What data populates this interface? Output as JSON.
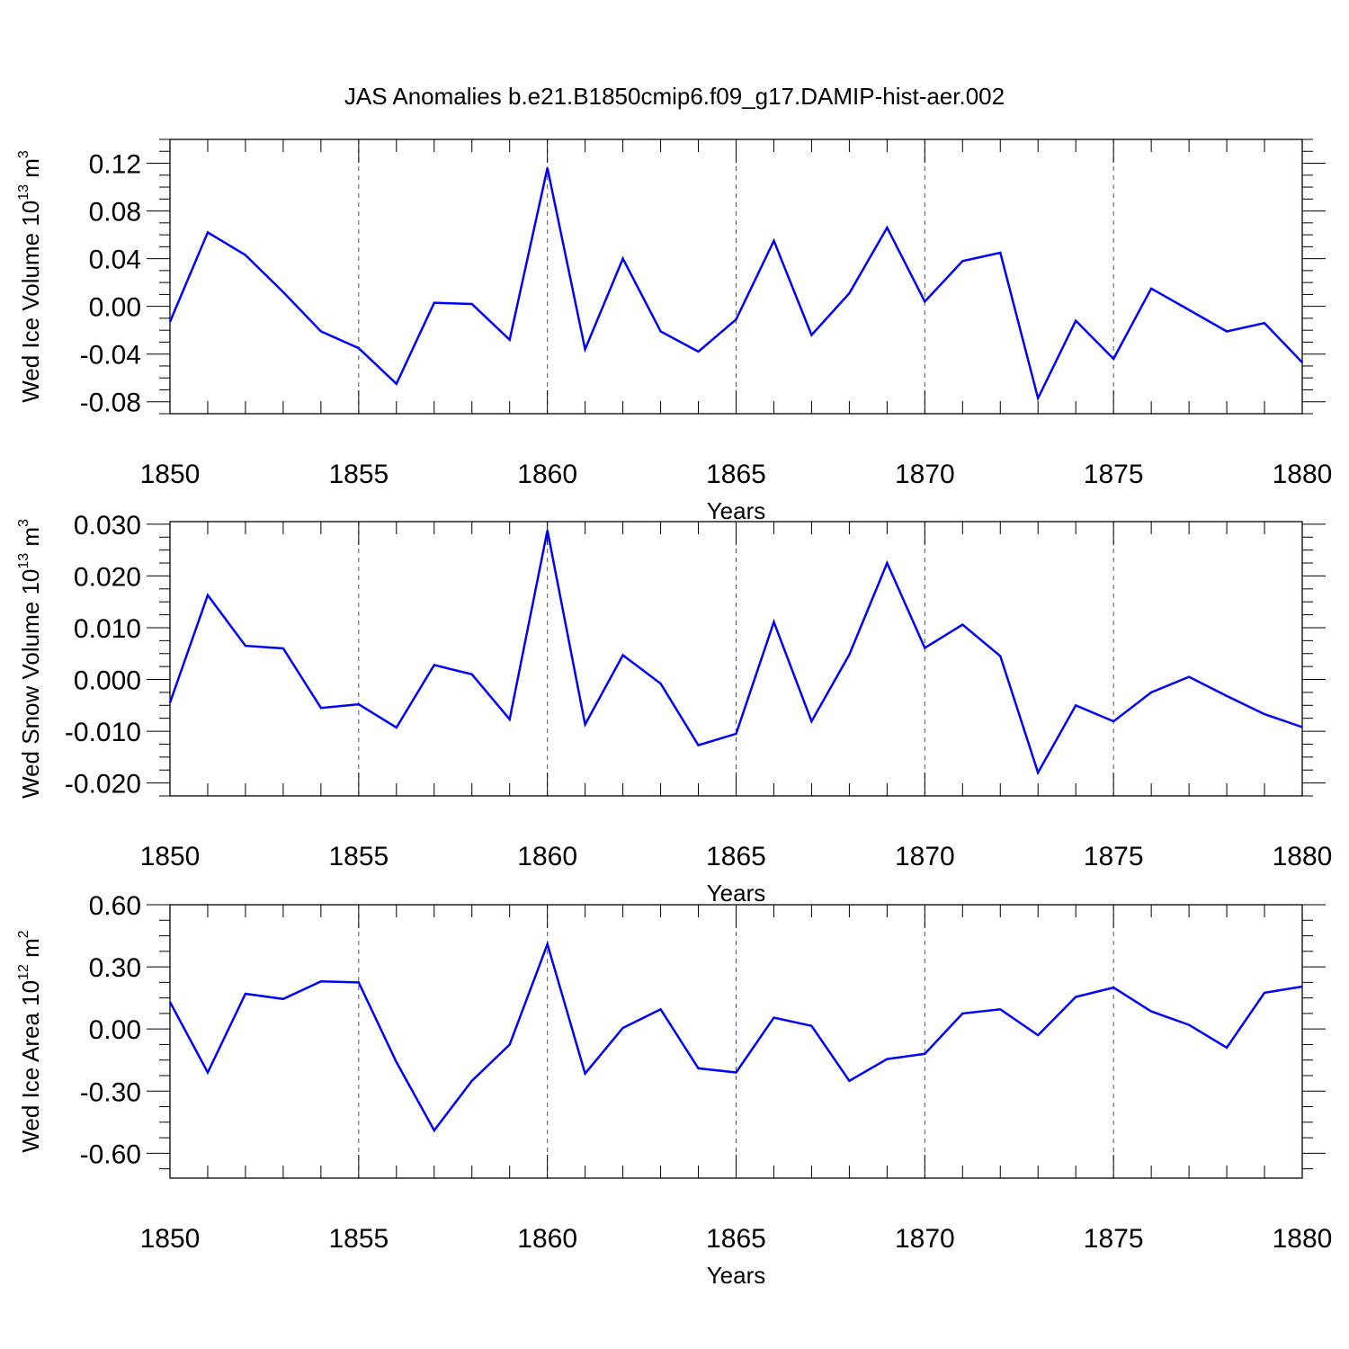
{
  "title": "JAS Anomalies b.e21.B1850cmip6.f09_g17.DAMIP-hist-aer.002",
  "chart_data": [
    {
      "type": "line",
      "ylabel": "Wed Ice Volume 10",
      "ylabel_exp": "13",
      "ylabel_unit": " m",
      "ylabel_unit_exp": "3",
      "xlabel": "Years",
      "x": [
        1850,
        1851,
        1852,
        1853,
        1854,
        1855,
        1856,
        1857,
        1858,
        1859,
        1860,
        1861,
        1862,
        1863,
        1864,
        1865,
        1866,
        1867,
        1868,
        1869,
        1870,
        1871,
        1872,
        1873,
        1874,
        1875,
        1876,
        1877,
        1878,
        1879,
        1880
      ],
      "values": [
        -0.013,
        0.062,
        0.043,
        0.012,
        -0.021,
        -0.035,
        -0.065,
        0.003,
        0.002,
        -0.028,
        0.116,
        -0.036,
        0.04,
        -0.021,
        -0.038,
        -0.011,
        0.055,
        -0.024,
        0.011,
        0.066,
        0.004,
        0.038,
        0.045,
        -0.077,
        -0.012,
        -0.044,
        0.015,
        -0.003,
        -0.021,
        -0.014,
        -0.047
      ],
      "xlim": [
        1850,
        1880
      ],
      "ylim": [
        -0.09,
        0.14
      ],
      "xticks": [
        "1850",
        "1855",
        "1860",
        "1865",
        "1870",
        "1875",
        "1880"
      ],
      "yticks": [
        "0.12",
        "0.08",
        "0.04",
        "0.00",
        "-0.04",
        "-0.08"
      ],
      "ytick_values": [
        0.12,
        0.08,
        0.04,
        0.0,
        -0.04,
        -0.08
      ],
      "grid": "vertical dashed at major x ticks",
      "color": "#0000ff"
    },
    {
      "type": "line",
      "ylabel": "Wed Snow Volume 10",
      "ylabel_exp": "13",
      "ylabel_unit": " m",
      "ylabel_unit_exp": "3",
      "xlabel": "Years",
      "x": [
        1850,
        1851,
        1852,
        1853,
        1854,
        1855,
        1856,
        1857,
        1858,
        1859,
        1860,
        1861,
        1862,
        1863,
        1864,
        1865,
        1866,
        1867,
        1868,
        1869,
        1870,
        1871,
        1872,
        1873,
        1874,
        1875,
        1876,
        1877,
        1878,
        1879,
        1880
      ],
      "values": [
        -0.0045,
        0.0163,
        0.0065,
        0.006,
        -0.0055,
        -0.0048,
        -0.0093,
        0.0028,
        0.001,
        -0.0077,
        0.0288,
        -0.0087,
        0.0047,
        -0.0008,
        -0.0127,
        -0.0105,
        0.0111,
        -0.0081,
        0.0048,
        0.0225,
        0.0061,
        0.0106,
        0.0045,
        -0.018,
        -0.005,
        -0.0081,
        -0.0025,
        0.0005,
        -0.0032,
        -0.0067,
        -0.0092
      ],
      "xlim": [
        1850,
        1880
      ],
      "ylim": [
        -0.0225,
        0.0305
      ],
      "xticks": [
        "1850",
        "1855",
        "1860",
        "1865",
        "1870",
        "1875",
        "1880"
      ],
      "yticks": [
        "0.030",
        "0.020",
        "0.010",
        "0.000",
        "-0.010",
        "-0.020"
      ],
      "ytick_values": [
        0.03,
        0.02,
        0.01,
        0.0,
        -0.01,
        -0.02
      ],
      "grid": "vertical dashed at major x ticks",
      "color": "#0000ff"
    },
    {
      "type": "line",
      "ylabel": "Wed Ice Area 10",
      "ylabel_exp": "12",
      "ylabel_unit": " m",
      "ylabel_unit_exp": "2",
      "xlabel": "Years",
      "x": [
        1850,
        1851,
        1852,
        1853,
        1854,
        1855,
        1856,
        1857,
        1858,
        1859,
        1860,
        1861,
        1862,
        1863,
        1864,
        1865,
        1866,
        1867,
        1868,
        1869,
        1870,
        1871,
        1872,
        1873,
        1874,
        1875,
        1876,
        1877,
        1878,
        1879,
        1880
      ],
      "values": [
        0.13,
        -0.21,
        0.17,
        0.145,
        0.23,
        0.225,
        -0.16,
        -0.49,
        -0.25,
        -0.075,
        0.41,
        -0.215,
        0.005,
        0.095,
        -0.19,
        -0.21,
        0.055,
        0.015,
        -0.25,
        -0.145,
        -0.12,
        0.075,
        0.095,
        -0.03,
        0.155,
        0.2,
        0.085,
        0.02,
        -0.09,
        0.175,
        0.205
      ],
      "xlim": [
        1850,
        1880
      ],
      "ylim": [
        -0.72,
        0.6
      ],
      "xticks": [
        "1850",
        "1855",
        "1860",
        "1865",
        "1870",
        "1875",
        "1880"
      ],
      "yticks": [
        "0.60",
        "0.30",
        "0.00",
        "-0.30",
        "-0.60"
      ],
      "ytick_values": [
        0.6,
        0.3,
        0.0,
        -0.3,
        -0.6
      ],
      "grid": "vertical dashed at major x ticks",
      "color": "#0000ff"
    }
  ]
}
